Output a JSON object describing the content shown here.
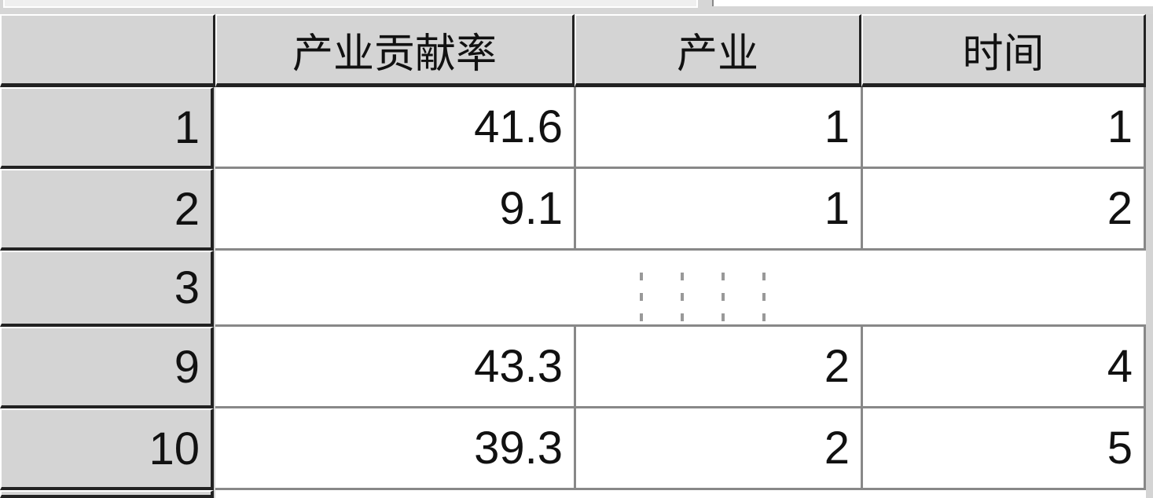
{
  "table": {
    "columns": [
      "产业贡献率",
      "产业",
      "时间"
    ],
    "rows": [
      {
        "label": "1",
        "values": [
          "41.6",
          "1",
          "1"
        ]
      },
      {
        "label": "2",
        "values": [
          "9.1",
          "1",
          "2"
        ]
      },
      {
        "label": "3",
        "values": [
          "",
          "",
          ""
        ],
        "elided": true
      },
      {
        "label": "9",
        "values": [
          "43.3",
          "2",
          "4"
        ]
      },
      {
        "label": "10",
        "values": [
          "39.3",
          "2",
          "5"
        ]
      }
    ]
  }
}
